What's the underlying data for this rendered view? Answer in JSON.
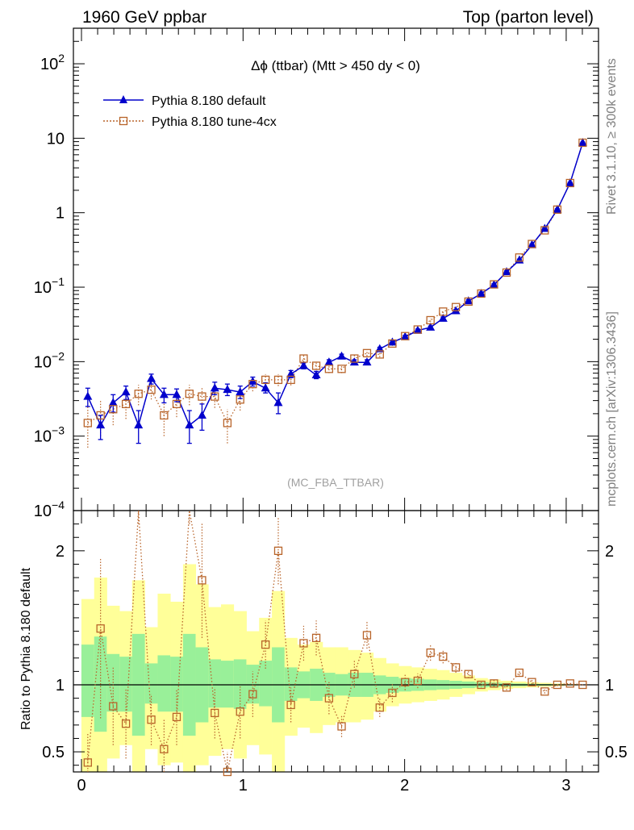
{
  "header": {
    "left": "1960 GeV ppbar",
    "right": "Top (parton level)"
  },
  "side": {
    "rivet": "Rivet 3.1.10, ≥ 300k events",
    "mcplots": "mcplots.cern.ch [arXiv:1306.3436]"
  },
  "colors": {
    "default": "#0000cc",
    "tune": "#b8642a",
    "band_inner": "#99f099",
    "band_outer": "#ffff99"
  },
  "chart_data": [
    {
      "type": "line",
      "title": "Δϕ (ttbar) (Mtt > 450 dy < 0)",
      "watermark": "(MC_FBA_TTBAR)",
      "yscale": "log",
      "ylim": [
        0.0001,
        300
      ],
      "xlim": [
        -0.05,
        3.2
      ],
      "y_ticks": [
        {
          "base": "10",
          "exp": "2",
          "v": 100
        },
        {
          "base": "10",
          "exp": "",
          "v": 10
        },
        {
          "base": "1",
          "exp": "",
          "v": 1
        },
        {
          "base": "10",
          "exp": "−1",
          "v": 0.1
        },
        {
          "base": "10",
          "exp": "−2",
          "v": 0.01
        },
        {
          "base": "10",
          "exp": "−3",
          "v": 0.001
        },
        {
          "base": "10",
          "exp": "−4",
          "v": 0.0001
        }
      ],
      "legend_position": "top-left",
      "x": [
        0.039,
        0.118,
        0.196,
        0.275,
        0.353,
        0.432,
        0.511,
        0.589,
        0.668,
        0.746,
        0.825,
        0.903,
        0.982,
        1.06,
        1.139,
        1.218,
        1.296,
        1.375,
        1.453,
        1.532,
        1.61,
        1.689,
        1.767,
        1.846,
        1.924,
        2.003,
        2.081,
        2.16,
        2.238,
        2.317,
        2.395,
        2.474,
        2.553,
        2.631,
        2.71,
        2.788,
        2.867,
        2.945,
        3.024,
        3.102
      ],
      "series": [
        {
          "name": "Pythia 8.180 default",
          "marker": "triangle",
          "values": [
            0.0034,
            0.0014,
            0.0028,
            0.0039,
            0.0014,
            0.0059,
            0.0036,
            0.0036,
            0.0014,
            0.0019,
            0.0044,
            0.0042,
            0.0039,
            0.0054,
            0.0044,
            0.0028,
            0.0068,
            0.0088,
            0.0066,
            0.0098,
            0.0118,
            0.0098,
            0.0098,
            0.0148,
            0.0182,
            0.0215,
            0.0262,
            0.0288,
            0.038,
            0.048,
            0.065,
            0.082,
            0.107,
            0.16,
            0.23,
            0.37,
            0.61,
            1.1,
            2.5,
            8.7
          ],
          "err_low": [
            0.0025,
            0.0009,
            0.0021,
            0.0031,
            0.0008,
            0.005,
            0.0028,
            0.0029,
            0.0008,
            0.0012,
            0.0036,
            0.0035,
            0.0032,
            0.0047,
            0.0038,
            0.002,
            0.0061,
            0.008,
            0.0059,
            0.0091,
            0.0111,
            0.0091,
            0.0091,
            0.014,
            0.0172,
            0.0205,
            0.025,
            0.0276,
            0.0362,
            0.046,
            0.062,
            0.078,
            0.103,
            0.154,
            0.222,
            0.36,
            0.59,
            1.07,
            2.44,
            8.55
          ],
          "err_high": [
            0.0044,
            0.0019,
            0.0036,
            0.0047,
            0.0022,
            0.0068,
            0.0044,
            0.0043,
            0.0022,
            0.0027,
            0.0053,
            0.005,
            0.0047,
            0.0062,
            0.0052,
            0.0038,
            0.0076,
            0.0096,
            0.0074,
            0.0106,
            0.0126,
            0.0106,
            0.0106,
            0.0156,
            0.0192,
            0.0225,
            0.0274,
            0.03,
            0.0398,
            0.05,
            0.068,
            0.086,
            0.111,
            0.166,
            0.238,
            0.38,
            0.63,
            1.13,
            2.56,
            8.85
          ]
        },
        {
          "name": "Pythia 8.180 tune-4cx",
          "marker": "open-square",
          "values": [
            0.0015,
            0.0019,
            0.0023,
            0.0027,
            0.0037,
            0.0042,
            0.0019,
            0.0027,
            0.0037,
            0.0034,
            0.0034,
            0.0015,
            0.0031,
            0.005,
            0.0057,
            0.0057,
            0.0057,
            0.011,
            0.0088,
            0.008,
            0.008,
            0.011,
            0.013,
            0.0125,
            0.0175,
            0.022,
            0.027,
            0.036,
            0.047,
            0.054,
            0.064,
            0.082,
            0.109,
            0.157,
            0.25,
            0.38,
            0.58,
            1.1,
            2.5,
            8.7
          ],
          "err_low": [
            0.0007,
            0.001,
            0.0014,
            0.0017,
            0.0026,
            0.0031,
            0.001,
            0.0018,
            0.0026,
            0.0023,
            0.0024,
            0.0008,
            0.0022,
            0.004,
            0.0047,
            0.0047,
            0.0048,
            0.0098,
            0.0078,
            0.007,
            0.007,
            0.0099,
            0.0119,
            0.0115,
            0.0163,
            0.0207,
            0.0256,
            0.0343,
            0.045,
            0.052,
            0.0615,
            0.079,
            0.105,
            0.1515,
            0.242,
            0.369,
            0.565,
            1.07,
            2.45,
            8.6
          ],
          "err_high": [
            0.0025,
            0.003,
            0.0033,
            0.0038,
            0.0049,
            0.0054,
            0.003,
            0.0037,
            0.0049,
            0.0046,
            0.0045,
            0.0023,
            0.0041,
            0.0061,
            0.0068,
            0.0068,
            0.0067,
            0.0123,
            0.0099,
            0.0091,
            0.0091,
            0.0122,
            0.0142,
            0.0136,
            0.0188,
            0.0234,
            0.0285,
            0.0378,
            0.049,
            0.056,
            0.0665,
            0.085,
            0.113,
            0.1625,
            0.258,
            0.391,
            0.595,
            1.13,
            2.56,
            8.8
          ]
        }
      ]
    },
    {
      "type": "line",
      "ylabel": "Ratio to Pythia 8.180 default",
      "ylim": [
        0.35,
        2.3
      ],
      "y_ticks": [
        "0.5",
        "1",
        "2"
      ],
      "x_ticks": [
        "0",
        "1",
        "2",
        "3"
      ],
      "reference_line": 1,
      "band_inner": {
        "low": [
          0.76,
          0.65,
          0.8,
          0.8,
          0.62,
          0.86,
          0.8,
          0.8,
          0.62,
          0.72,
          0.83,
          0.83,
          0.82,
          0.86,
          0.84,
          0.72,
          0.88,
          0.9,
          0.88,
          0.91,
          0.92,
          0.91,
          0.91,
          0.93,
          0.94,
          0.95,
          0.955,
          0.96,
          0.965,
          0.97,
          0.975,
          0.98,
          0.983,
          0.986,
          0.99,
          0.992,
          0.994,
          0.996,
          0.998,
          0.999
        ],
        "high": [
          1.3,
          1.36,
          1.23,
          1.21,
          1.38,
          1.16,
          1.22,
          1.21,
          1.38,
          1.28,
          1.19,
          1.18,
          1.19,
          1.15,
          1.18,
          1.28,
          1.13,
          1.1,
          1.12,
          1.09,
          1.08,
          1.09,
          1.09,
          1.07,
          1.06,
          1.05,
          1.045,
          1.04,
          1.035,
          1.03,
          1.025,
          1.02,
          1.017,
          1.014,
          1.01,
          1.008,
          1.006,
          1.004,
          1.002,
          1.001
        ]
      },
      "band_outer": {
        "low": [
          0.35,
          0.35,
          0.45,
          0.55,
          0.35,
          0.52,
          0.4,
          0.42,
          0.35,
          0.4,
          0.47,
          0.52,
          0.45,
          0.55,
          0.48,
          0.35,
          0.62,
          0.68,
          0.64,
          0.7,
          0.72,
          0.72,
          0.74,
          0.8,
          0.84,
          0.86,
          0.87,
          0.88,
          0.89,
          0.91,
          0.93,
          0.95,
          0.96,
          0.97,
          0.975,
          0.98,
          0.985,
          0.99,
          0.995,
          0.998
        ],
        "high": [
          1.64,
          1.8,
          1.59,
          1.55,
          1.78,
          1.43,
          1.68,
          1.62,
          1.9,
          1.75,
          1.58,
          1.6,
          1.55,
          1.4,
          1.5,
          1.7,
          1.35,
          1.3,
          1.32,
          1.28,
          1.28,
          1.26,
          1.24,
          1.2,
          1.16,
          1.14,
          1.13,
          1.12,
          1.11,
          1.09,
          1.07,
          1.05,
          1.04,
          1.03,
          1.025,
          1.02,
          1.015,
          1.01,
          1.005,
          1.002
        ]
      },
      "series": [
        {
          "name": "Pythia 8.180 tune-4cx",
          "values": [
            0.42,
            1.42,
            0.84,
            0.71,
            2.6,
            0.74,
            0.52,
            0.76,
            2.6,
            1.78,
            0.79,
            0.35,
            0.8,
            0.93,
            1.3,
            2.0,
            0.85,
            1.31,
            1.35,
            0.9,
            0.69,
            1.08,
            1.37,
            0.83,
            0.94,
            1.02,
            1.03,
            1.24,
            1.21,
            1.13,
            1.08,
            1.0,
            1.01,
            0.98,
            1.09,
            1.02,
            0.95,
            1.0,
            1.01,
            1.0
          ],
          "err_low": [
            0.2,
            0.75,
            0.55,
            0.45,
            2.2,
            0.55,
            0.3,
            0.55,
            2.2,
            1.35,
            0.6,
            0.2,
            0.6,
            0.76,
            1.12,
            1.75,
            0.72,
            1.18,
            1.22,
            0.78,
            0.61,
            0.98,
            1.27,
            0.76,
            0.87,
            0.96,
            0.975,
            1.18,
            1.16,
            1.09,
            1.05,
            0.97,
            0.985,
            0.96,
            1.07,
            1.005,
            0.935,
            0.99,
            1.0,
            0.995
          ],
          "err_high": [
            0.64,
            1.95,
            1.13,
            0.97,
            3.0,
            0.93,
            0.74,
            0.97,
            3.0,
            2.21,
            0.98,
            0.5,
            1.0,
            1.1,
            1.48,
            2.25,
            0.98,
            1.44,
            1.48,
            1.02,
            0.77,
            1.18,
            1.47,
            0.9,
            1.01,
            1.08,
            1.085,
            1.3,
            1.26,
            1.17,
            1.11,
            1.03,
            1.035,
            1.0,
            1.11,
            1.035,
            0.965,
            1.01,
            1.02,
            1.005
          ]
        }
      ]
    }
  ]
}
